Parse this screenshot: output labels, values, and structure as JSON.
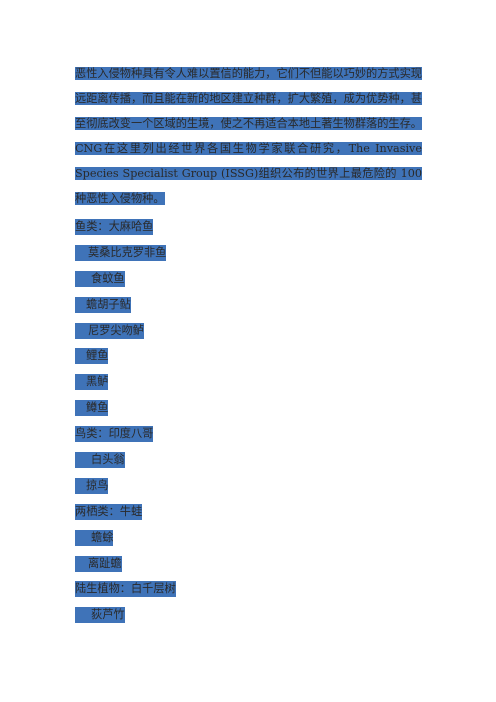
{
  "paragraph": "恶性入侵物种具有令人难以置信的能力，它们不但能以巧妙的方式实现远距离传播，而且能在新的地区建立种群，扩大繁殖，成为优势种，甚至彻底改变一个区域的生境，使之不再适合本地土著生物群落的生存。CNG在这里列出经世界各国生物学家联合研究，The Invasive Species Specialist Group (ISSG)组织公布的世界上最危险的 100种恶性入侵物种。",
  "items": [
    "鱼类：大麻哈鱼",
    "莫桑比克罗非鱼",
    "食蚊鱼",
    "蟾胡子鲇",
    "尼罗尖吻鲈",
    "鲤鱼",
    "黑鲈",
    "鳟鱼",
    "鸟类：印度八哥",
    "白头翁",
    "掠鸟",
    "两栖类：牛蛙",
    "蟾蜍",
    "离趾蟾",
    "陆生植物：白千层树",
    "荻芦竹"
  ]
}
